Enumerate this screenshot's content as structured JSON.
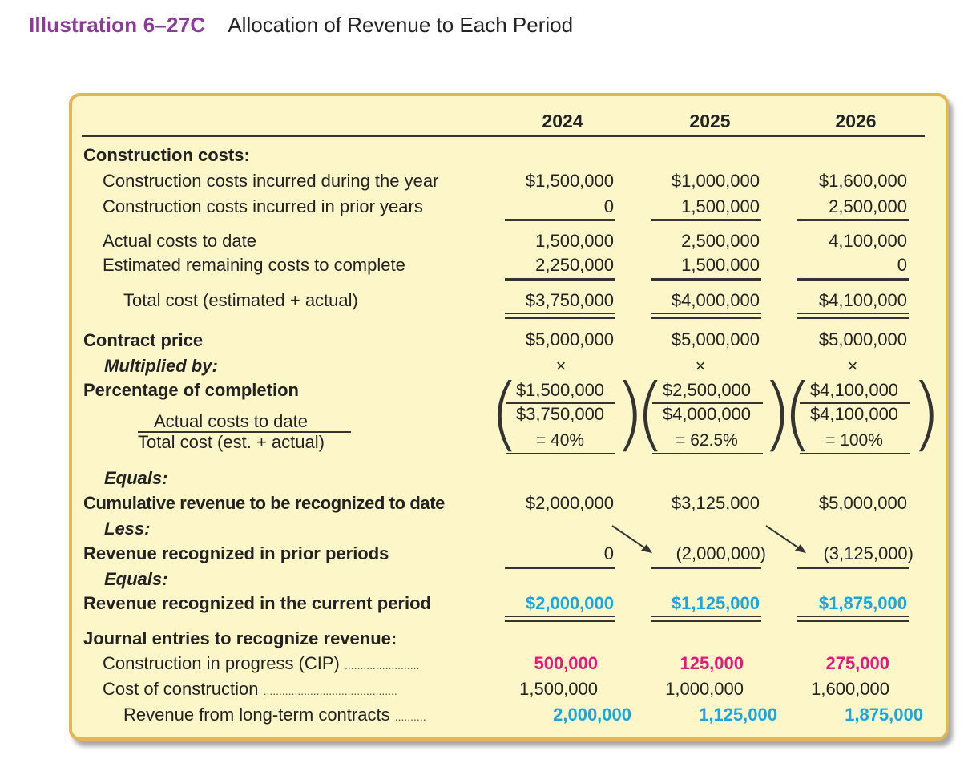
{
  "heading": {
    "number": "Illustration 6–27C",
    "title": "Allocation of Revenue to Each Period"
  },
  "years": [
    "2024",
    "2025",
    "2026"
  ],
  "labels": {
    "construction_costs": "Construction costs:",
    "incurred_year": "Construction costs incurred during the year",
    "incurred_prior": "Construction costs incurred in prior years",
    "actual_to_date": "Actual costs to date",
    "est_remaining": "Estimated remaining costs to complete",
    "total_cost": "Total cost (estimated + actual)",
    "contract_price": "Contract price",
    "multiplied_by": "Multiplied by:",
    "pct_completion": "Percentage of completion",
    "frac_num": "Actual costs to date",
    "frac_den": "Total cost (est. + actual)",
    "equals1": "Equals:",
    "cumulative": "Cumulative revenue to be recognized to date",
    "less": "Less:",
    "prior_rev": "Revenue recognized in prior periods",
    "equals2": "Equals:",
    "current_rev": "Revenue recognized in the current period",
    "journal": "Journal entries to recognize revenue:",
    "cip": "Construction in progress (CIP)",
    "cost_construction": "Cost of construction",
    "rev_contracts": "Revenue from long-term contracts"
  },
  "rows": {
    "incurred_year": [
      "$1,500,000",
      "$1,000,000",
      "$1,600,000"
    ],
    "incurred_prior": [
      "0",
      "1,500,000",
      "2,500,000"
    ],
    "actual_to_date": [
      "1,500,000",
      "2,500,000",
      "4,100,000"
    ],
    "est_remaining": [
      "2,250,000",
      "1,500,000",
      "0"
    ],
    "total_cost": [
      "$3,750,000",
      "$4,000,000",
      "$4,100,000"
    ],
    "contract_price": [
      "$5,000,000",
      "$5,000,000",
      "$5,000,000"
    ],
    "times": [
      "×",
      "×",
      "×"
    ],
    "pct_num": [
      "$1,500,000",
      "$2,500,000",
      "$4,100,000"
    ],
    "pct_den": [
      "$3,750,000",
      "$4,000,000",
      "$4,100,000"
    ],
    "pct_result": [
      "= 40%",
      "= 62.5%",
      "= 100%"
    ],
    "cumulative": [
      "$2,000,000",
      "$3,125,000",
      "$5,000,000"
    ],
    "prior_rev": [
      "0",
      "(2,000,000)",
      "(3,125,000)"
    ],
    "current_rev": [
      "$2,000,000",
      "$1,125,000",
      "$1,875,000"
    ],
    "cip": [
      "500,000",
      "125,000",
      "275,000"
    ],
    "cost_construction": [
      "1,500,000",
      "1,000,000",
      "1,600,000"
    ],
    "rev_contracts": [
      "2,000,000",
      "1,125,000",
      "1,875,000"
    ]
  },
  "colors": {
    "heading_accent": "#8b3a98",
    "panel_bg": "#fdf6c8",
    "panel_border": "#e2b655",
    "blue": "#1aa6e0",
    "pink": "#e6187a"
  }
}
